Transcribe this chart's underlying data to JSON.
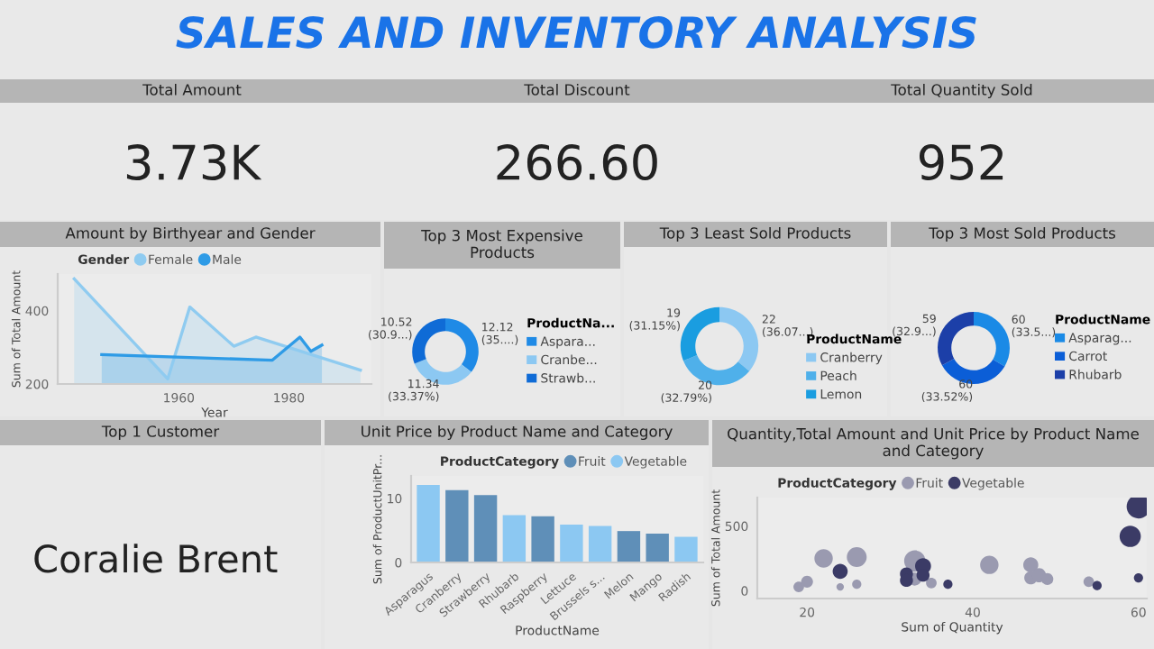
{
  "chart_data": [
    {
      "type": "other",
      "title": "SALES AND INVENTORY ANALYSIS"
    },
    {
      "type": "other",
      "title": "Total Amount",
      "annotations": [
        "3.73K"
      ]
    },
    {
      "type": "other",
      "title": "Total Discount",
      "annotations": [
        "266.60"
      ]
    },
    {
      "type": "other",
      "title": "Total Quantity Sold",
      "annotations": [
        "952"
      ]
    },
    {
      "type": "area",
      "title": "Amount by Birthyear and Gender",
      "xlabel": "Year",
      "ylabel": "Sum of Total Amount",
      "legend_title": "Gender",
      "legend": "top left",
      "grid": false,
      "xlim": [
        1938,
        1995
      ],
      "xticks": [
        1960,
        1980
      ],
      "ylim": [
        200,
        500
      ],
      "yticks": [
        200,
        400
      ],
      "series": [
        {
          "name": "Female",
          "color": "#8fcbf0",
          "x": [
            1941,
            1958,
            1962,
            1970,
            1974,
            1993
          ],
          "values": [
            487,
            214,
            410,
            303,
            328,
            238
          ]
        },
        {
          "name": "Male",
          "color": "#2e9be6",
          "x": [
            1946,
            1977,
            1982,
            1984,
            1986
          ],
          "values": [
            280,
            265,
            328,
            289,
            306
          ]
        }
      ]
    },
    {
      "type": "donut",
      "title": "Top 3 Most Expensive Products",
      "legend_title": "ProductNa...",
      "legend": "right",
      "categories": [
        "Aspara...",
        "Cranbe...",
        "Strawb..."
      ],
      "values": [
        12.12,
        11.34,
        10.52
      ],
      "colors": [
        "#1f8ae6",
        "#8cc8f2",
        "#0f6bd6"
      ],
      "value_labels": [
        "12.12 (35....)",
        "11.34 (33.37%)",
        "10.52 (30.9...)"
      ]
    },
    {
      "type": "donut",
      "title": "Top 3 Least Sold Products",
      "legend_title": "ProductName",
      "legend": "right",
      "categories": [
        "Cranberry",
        "Peach",
        "Lemon"
      ],
      "values": [
        22,
        20,
        19
      ],
      "colors": [
        "#8cc8f2",
        "#4fb0ea",
        "#1a9de0"
      ],
      "value_labels": [
        "22 (36.07...)",
        "20 (32.79%)",
        "19 (31.15%)"
      ]
    },
    {
      "type": "donut",
      "title": "Top 3 Most Sold Products",
      "legend_title": "ProductName",
      "legend": "right",
      "categories": [
        "Asparag...",
        "Carrot",
        "Rhubarb"
      ],
      "values": [
        60,
        60,
        59
      ],
      "colors": [
        "#1a8ae6",
        "#0b5ed7",
        "#1c3fa8"
      ],
      "value_labels": [
        "60 (33.5...)",
        "60 (33.52%)",
        "59 (32.9...)"
      ]
    },
    {
      "type": "other",
      "title": "Top 1 Customer",
      "annotations": [
        "Coralie Brent"
      ]
    },
    {
      "type": "bar",
      "stacked": true,
      "title": "Unit Price by Product Name and Category",
      "xlabel": "ProductName",
      "ylabel": "Sum of ProductUnitPr...",
      "legend_title": "ProductCategory",
      "legend": "top",
      "grid": false,
      "categories": [
        "Asparagus",
        "Cranberry",
        "Strawberry",
        "Rhubarb",
        "Raspberry",
        "Lettuce",
        "Brussels s...",
        "Melon",
        "Mango",
        "Radish"
      ],
      "ylim": [
        0,
        13.5
      ],
      "yticks": [
        0,
        10
      ],
      "series": [
        {
          "name": "Fruit",
          "color": "#5f8fb8",
          "values": [
            null,
            11.3,
            10.5,
            null,
            7.2,
            null,
            null,
            4.9,
            4.5,
            null
          ]
        },
        {
          "name": "Vegetable",
          "color": "#8cc8f2",
          "values": [
            12.1,
            null,
            null,
            7.4,
            null,
            5.9,
            5.7,
            null,
            null,
            4.0
          ]
        }
      ]
    },
    {
      "type": "bubble",
      "title": "Quantity,Total Amount and Unit Price by Product Name and Category",
      "xlabel": "Sum of Quantity",
      "ylabel": "Sum of Total Amount",
      "legend_title": "ProductCategory",
      "legend": "top left",
      "grid": false,
      "xlim": [
        14,
        61
      ],
      "xticks": [
        20,
        40,
        60
      ],
      "ylim": [
        -60,
        720
      ],
      "yticks": [
        0,
        500
      ],
      "series": [
        {
          "name": "Fruit",
          "color": "#9a9ab0",
          "x": [
            19,
            20,
            22,
            24,
            26,
            26,
            33,
            33,
            35,
            42,
            47,
            47,
            48,
            49,
            54
          ],
          "values": [
            30,
            70,
            250,
            30,
            50,
            260,
            230,
            90,
            60,
            200,
            200,
            100,
            120,
            90,
            70
          ],
          "sizes": [
            0.2,
            0.25,
            0.6,
            0.1,
            0.15,
            0.7,
            0.8,
            0.3,
            0.2,
            0.6,
            0.4,
            0.3,
            0.35,
            0.25,
            0.2
          ]
        },
        {
          "name": "Vegetable",
          "color": "#3b3b66",
          "x": [
            24,
            32,
            32,
            34,
            34,
            37,
            55,
            59,
            60,
            60
          ],
          "values": [
            150,
            130,
            80,
            190,
            120,
            50,
            40,
            420,
            650,
            100
          ],
          "sizes": [
            0.4,
            0.3,
            0.3,
            0.45,
            0.3,
            0.15,
            0.15,
            0.8,
            1,
            0.15
          ]
        }
      ]
    }
  ]
}
